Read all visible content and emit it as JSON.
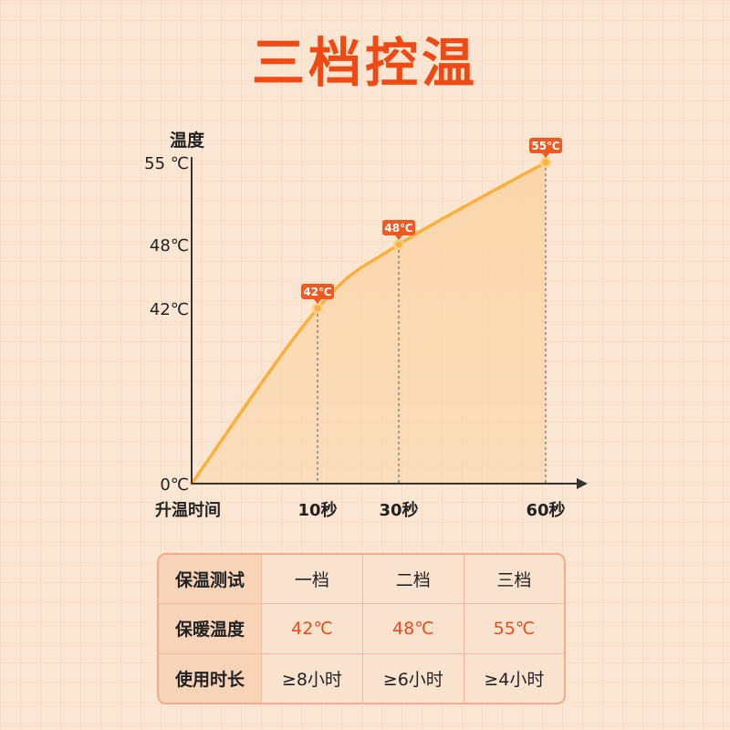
{
  "title": "三档控温",
  "chart_data": {
    "type": "area",
    "ylabel": "温度",
    "xlabel": "升温时间",
    "y_ticks": [
      "55 ℃",
      "48℃",
      "42℃",
      "0℃"
    ],
    "x_ticks": [
      "10秒",
      "30秒",
      "60秒"
    ],
    "y_tick_values": [
      55,
      48,
      42,
      0
    ],
    "x_tick_values": [
      10,
      30,
      60
    ],
    "points": [
      {
        "x": 10,
        "y": 42,
        "label": "42℃"
      },
      {
        "x": 30,
        "y": 48,
        "label": "48℃"
      },
      {
        "x": 60,
        "y": 55,
        "label": "55℃"
      }
    ],
    "origin": {
      "x": 0,
      "y": 0
    },
    "colors": {
      "line": "#fbb03b",
      "fill": "#fbd5a8",
      "label_bg": "#f05a22",
      "axis": "#333333"
    }
  },
  "table": {
    "rows": [
      {
        "head": "保温测试",
        "cells": [
          "一档",
          "二档",
          "三档"
        ],
        "highlight": false
      },
      {
        "head": "保暖温度",
        "cells": [
          "42℃",
          "48℃",
          "55℃"
        ],
        "highlight": true
      },
      {
        "head": "使用时长",
        "cells": [
          "≥8小时",
          "≥6小时",
          "≥4小时"
        ],
        "highlight": false
      }
    ]
  }
}
